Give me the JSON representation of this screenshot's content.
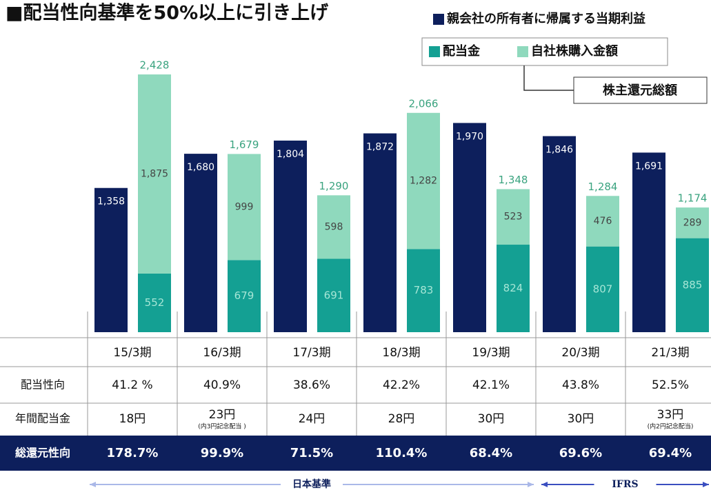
{
  "chart_data": {
    "type": "bar",
    "title": "■配当性向基準を50%以上に引き上げ",
    "categories": [
      "15/3期",
      "16/3期",
      "17/3期",
      "18/3期",
      "19/3期",
      "20/3期",
      "21/3期"
    ],
    "series": [
      {
        "name": "親会社の所有者に帰属する当期利益",
        "color": "#0d1f5c",
        "values": [
          1358,
          1680,
          1804,
          1872,
          1970,
          1846,
          1691
        ],
        "value_labels": [
          "1,358",
          "1,680",
          "1,804",
          "1,872",
          "1,970",
          "1,846",
          "1,691"
        ]
      },
      {
        "name": "配当金",
        "color": "#14a093",
        "values": [
          552,
          679,
          691,
          783,
          824,
          807,
          885
        ]
      },
      {
        "name": "自社株購入金額",
        "color": "#8fd9bd",
        "values": [
          1875,
          999,
          598,
          1282,
          523,
          476,
          289
        ],
        "value_labels": [
          "1,875",
          "999",
          "598",
          "1,282",
          "523",
          "476",
          "289"
        ]
      }
    ],
    "total_name": "株主還元総額",
    "total_labels": [
      "2,428",
      "1,679",
      "1,290",
      "2,066",
      "1,348",
      "1,284",
      "1,174"
    ],
    "table": {
      "rows": [
        {
          "label": "配当性向",
          "values": [
            "41.2 %",
            "40.9%",
            "38.6%",
            "42.2%",
            "42.1%",
            "43.8%",
            "52.5%"
          ]
        },
        {
          "label": "年間配当金",
          "values": [
            "18円",
            "23円",
            "24円",
            "28円",
            "30円",
            "30円",
            "33円"
          ],
          "notes": [
            null,
            "(内3円記念配当 )",
            null,
            null,
            null,
            null,
            "(内2円記念配当)"
          ]
        },
        {
          "label": "総還元性向",
          "values": [
            "178.7%",
            "99.9%",
            "71.5%",
            "110.4%",
            "68.4%",
            "69.6%",
            "69.4%"
          ]
        }
      ]
    },
    "standards": [
      {
        "label": "日本基準",
        "span": [
          0,
          4
        ]
      },
      {
        "label": "IFRS",
        "span": [
          5,
          6
        ]
      }
    ]
  }
}
